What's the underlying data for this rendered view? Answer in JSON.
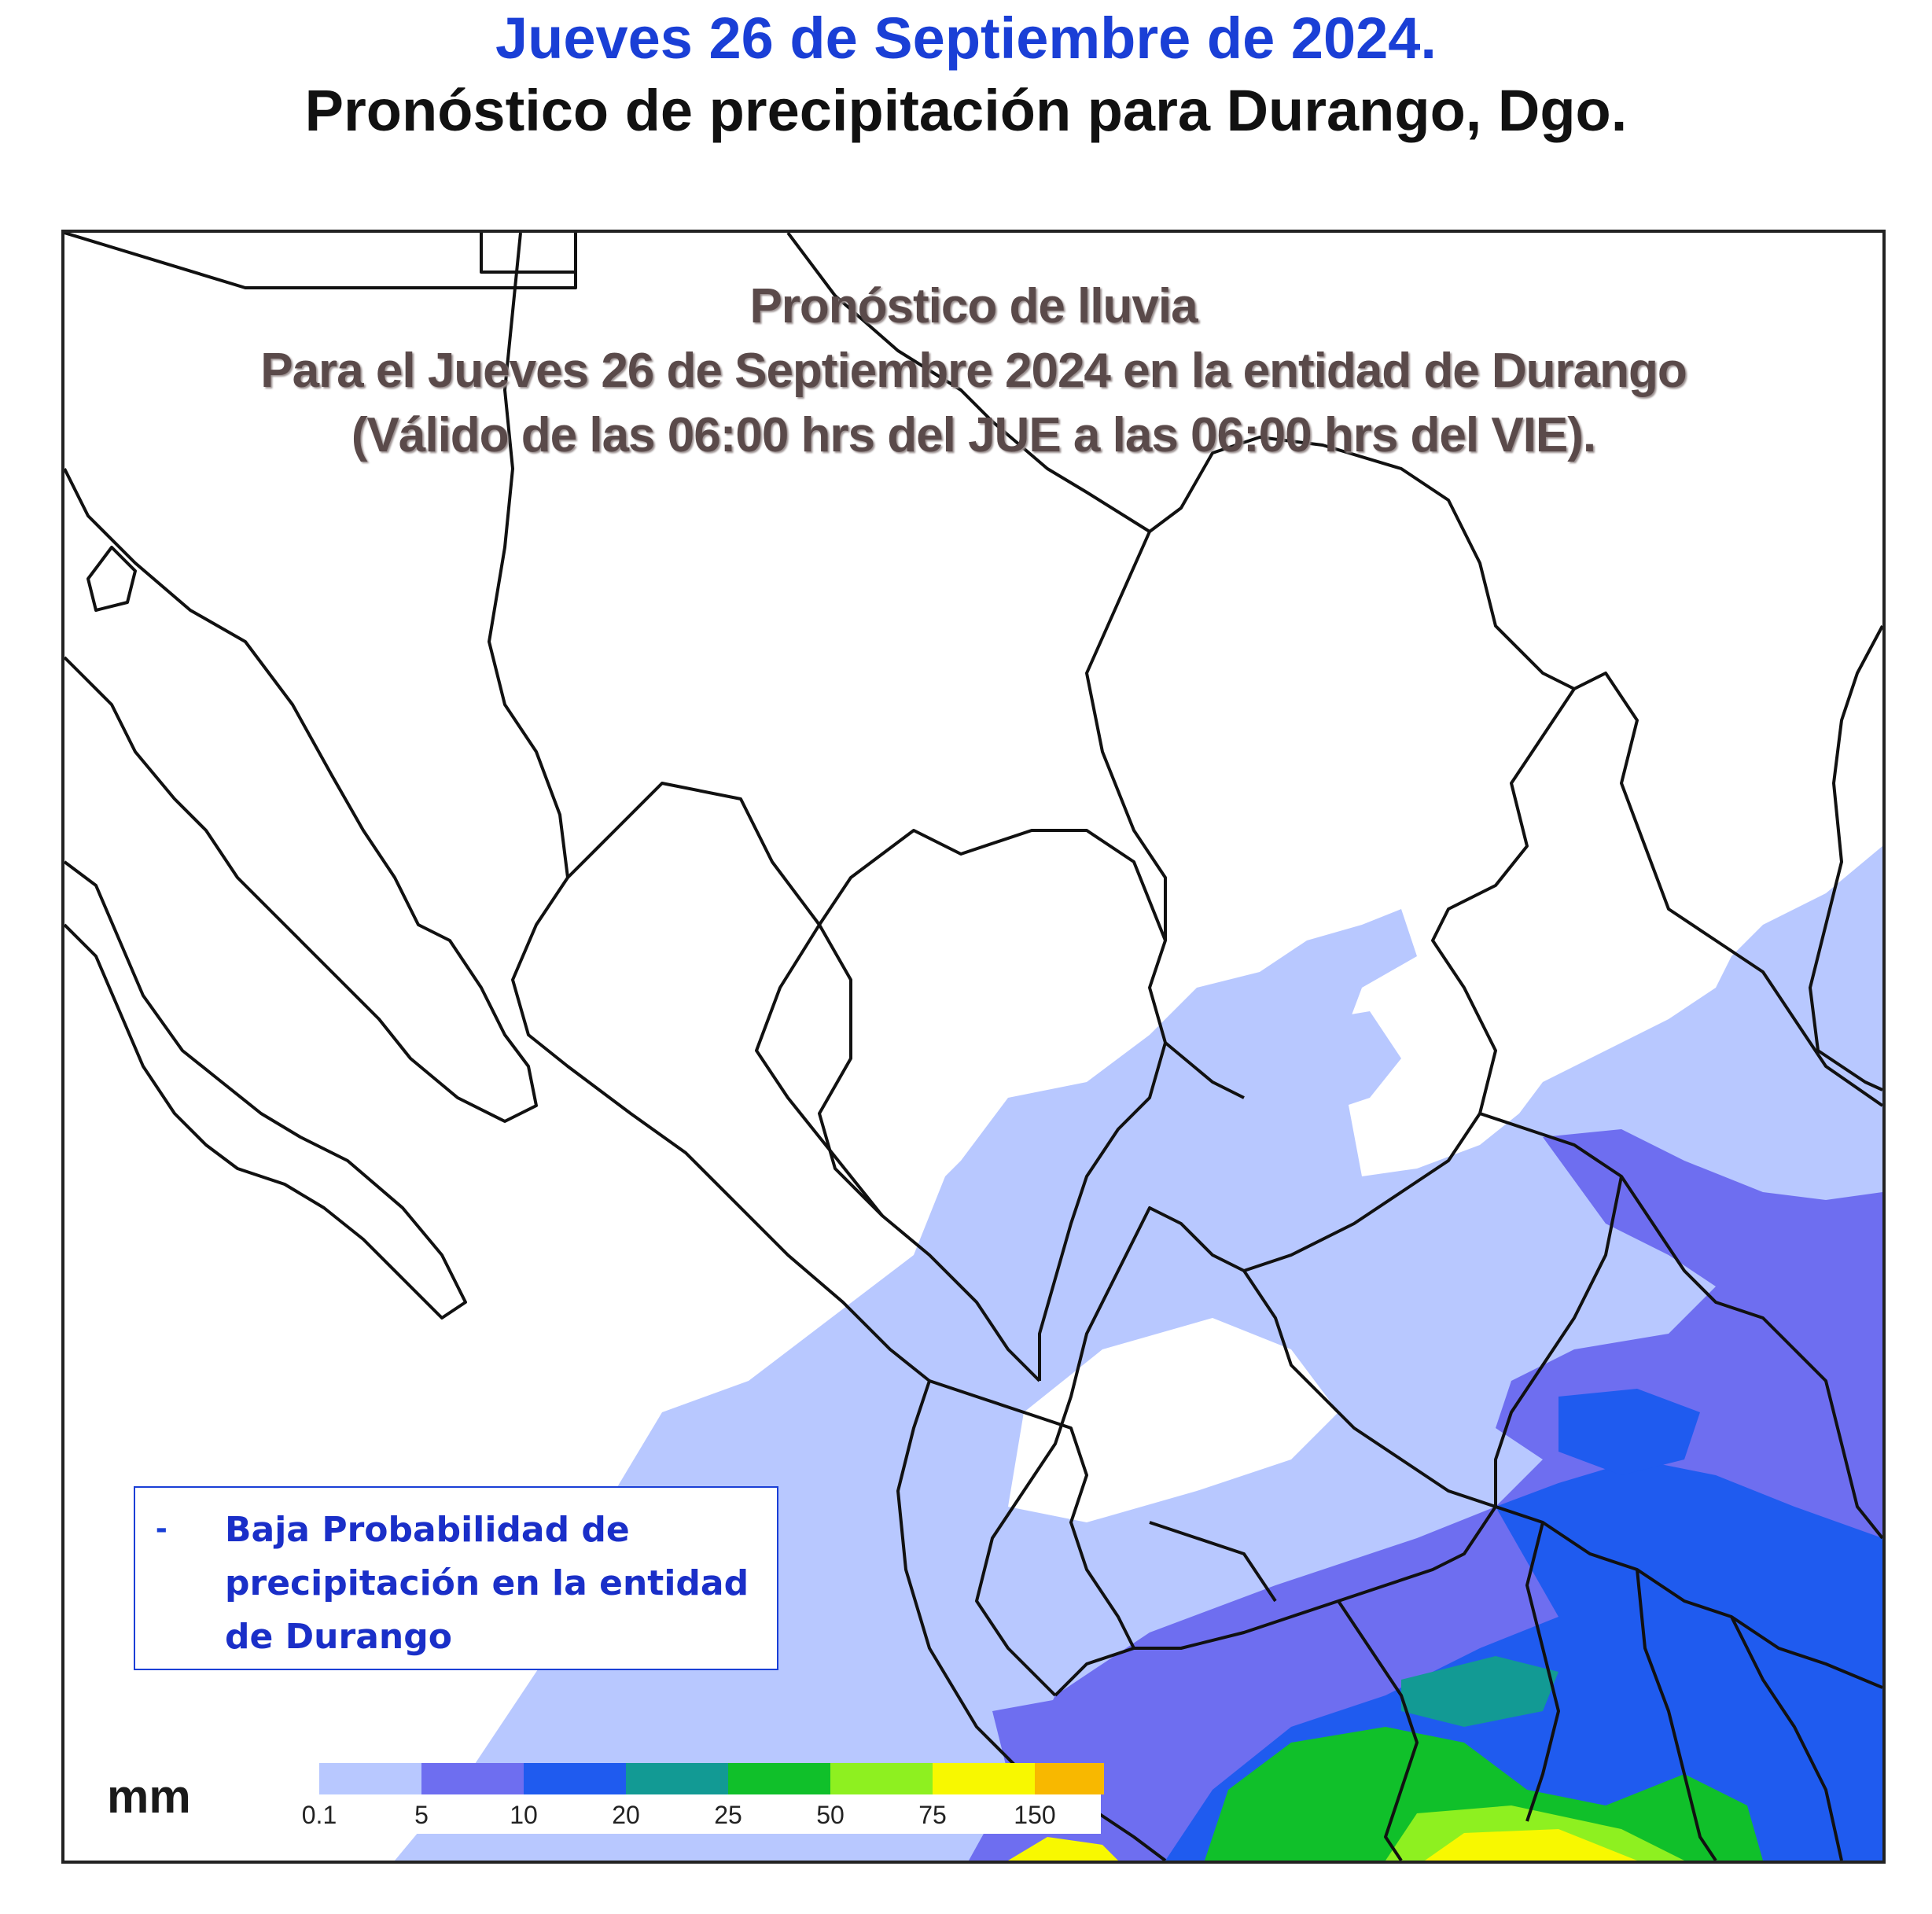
{
  "header": {
    "date": "Jueves 26 de Septiembre de 2024.",
    "title": "Pronóstico de precipitación para Durango, Dgo."
  },
  "map": {
    "title_line1": "Pronóstico de lluvia",
    "title_line2": "Para el Jueves 26 de Septiembre 2024 en la entidad de Durango",
    "title_line3": "(Válido de las 06:00 hrs del JUE a las 06:00 hrs del VIE).",
    "note_bullet": "-",
    "note_text": "Baja Probabilidad de precipitación en la entidad de Durango"
  },
  "legend": {
    "unit": "mm",
    "classes": [
      {
        "label": "0.1",
        "color": "#ffffff"
      },
      {
        "label": "5",
        "color": "#b8c8ff"
      },
      {
        "label": "10",
        "color": "#6e6ef0"
      },
      {
        "label": "20",
        "color": "#1f5bef"
      },
      {
        "label": "25",
        "color": "#129a94"
      },
      {
        "label": "50",
        "color": "#10c02a"
      },
      {
        "label": "75",
        "color": "#8ef020"
      },
      {
        "label": "150",
        "color": "#f8f800"
      },
      {
        "label": "",
        "color": "#f8b800"
      }
    ]
  }
}
